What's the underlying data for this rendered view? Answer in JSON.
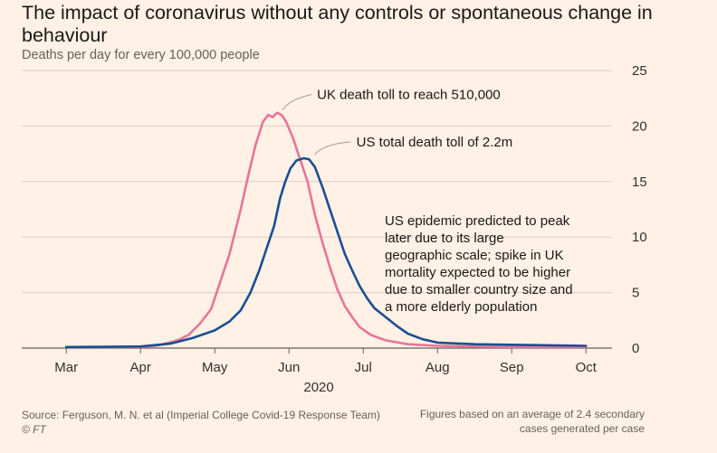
{
  "title": "The impact of coronavirus without any controls or spontaneous change in behaviour",
  "subtitle": "Deaths per day for every 100,000 people",
  "source": "Source: Ferguson, M. N. et al (Imperial College Covid-19 Response Team)",
  "credit": "© FT",
  "footnote": "Figures based on an average of 2.4 secondary cases generated per case",
  "chart_data": {
    "type": "line",
    "ylim": [
      0,
      25
    ],
    "yticks": [
      0,
      5,
      10,
      15,
      20,
      25
    ],
    "xdomain": [
      -0.6,
      7.35
    ],
    "xticks": [
      {
        "label": "Mar",
        "x": 0
      },
      {
        "label": "Apr",
        "x": 1
      },
      {
        "label": "May",
        "x": 2
      },
      {
        "label": "Jun",
        "x": 3
      },
      {
        "label": "Jul",
        "x": 4
      },
      {
        "label": "Aug",
        "x": 5
      },
      {
        "label": "Sep",
        "x": 6
      },
      {
        "label": "Oct",
        "x": 7
      }
    ],
    "year_label": "2020",
    "grid": true,
    "series": [
      {
        "name": "UK",
        "color": "#e8749a",
        "points": [
          [
            0.0,
            0.1
          ],
          [
            1.0,
            0.1
          ],
          [
            1.25,
            0.25
          ],
          [
            1.5,
            0.7
          ],
          [
            1.65,
            1.2
          ],
          [
            1.8,
            2.2
          ],
          [
            1.95,
            3.5
          ],
          [
            2.05,
            5.5
          ],
          [
            2.2,
            8.5
          ],
          [
            2.35,
            12.5
          ],
          [
            2.45,
            15.5
          ],
          [
            2.55,
            18.3
          ],
          [
            2.65,
            20.4
          ],
          [
            2.72,
            21.0
          ],
          [
            2.78,
            20.8
          ],
          [
            2.84,
            21.2
          ],
          [
            2.9,
            21.0
          ],
          [
            2.96,
            20.4
          ],
          [
            3.05,
            19.0
          ],
          [
            3.15,
            17.0
          ],
          [
            3.25,
            15.0
          ],
          [
            3.35,
            12.0
          ],
          [
            3.45,
            9.5
          ],
          [
            3.55,
            7.3
          ],
          [
            3.65,
            5.3
          ],
          [
            3.75,
            3.8
          ],
          [
            3.85,
            2.8
          ],
          [
            3.95,
            1.9
          ],
          [
            4.1,
            1.2
          ],
          [
            4.3,
            0.7
          ],
          [
            4.6,
            0.35
          ],
          [
            5.0,
            0.2
          ],
          [
            6.0,
            0.1
          ],
          [
            7.0,
            0.1
          ]
        ]
      },
      {
        "name": "US",
        "color": "#1b4f91",
        "points": [
          [
            0.0,
            0.1
          ],
          [
            1.0,
            0.15
          ],
          [
            1.4,
            0.4
          ],
          [
            1.7,
            0.9
          ],
          [
            2.0,
            1.6
          ],
          [
            2.2,
            2.4
          ],
          [
            2.35,
            3.4
          ],
          [
            2.48,
            5.0
          ],
          [
            2.6,
            7.0
          ],
          [
            2.7,
            9.0
          ],
          [
            2.8,
            11.0
          ],
          [
            2.88,
            13.5
          ],
          [
            2.95,
            15.0
          ],
          [
            3.02,
            16.2
          ],
          [
            3.1,
            16.9
          ],
          [
            3.2,
            17.1
          ],
          [
            3.27,
            17.0
          ],
          [
            3.35,
            16.3
          ],
          [
            3.45,
            14.5
          ],
          [
            3.55,
            12.5
          ],
          [
            3.65,
            10.5
          ],
          [
            3.75,
            8.5
          ],
          [
            3.85,
            7.0
          ],
          [
            3.95,
            5.6
          ],
          [
            4.05,
            4.5
          ],
          [
            4.15,
            3.6
          ],
          [
            4.3,
            2.8
          ],
          [
            4.45,
            2.0
          ],
          [
            4.6,
            1.3
          ],
          [
            4.8,
            0.8
          ],
          [
            5.0,
            0.5
          ],
          [
            5.5,
            0.35
          ],
          [
            6.0,
            0.3
          ],
          [
            7.0,
            0.2
          ]
        ]
      }
    ],
    "annotations": [
      {
        "text": "UK death toll to reach 510,000",
        "series": "UK"
      },
      {
        "text": "US total death toll of 2.2m",
        "series": "US"
      },
      {
        "text": [
          "US epidemic predicted to peak",
          "later due to its large",
          "geographic scale; spike in UK",
          "mortality expected to be higher",
          "due to smaller country size and",
          "a more elderly population"
        ]
      }
    ]
  }
}
